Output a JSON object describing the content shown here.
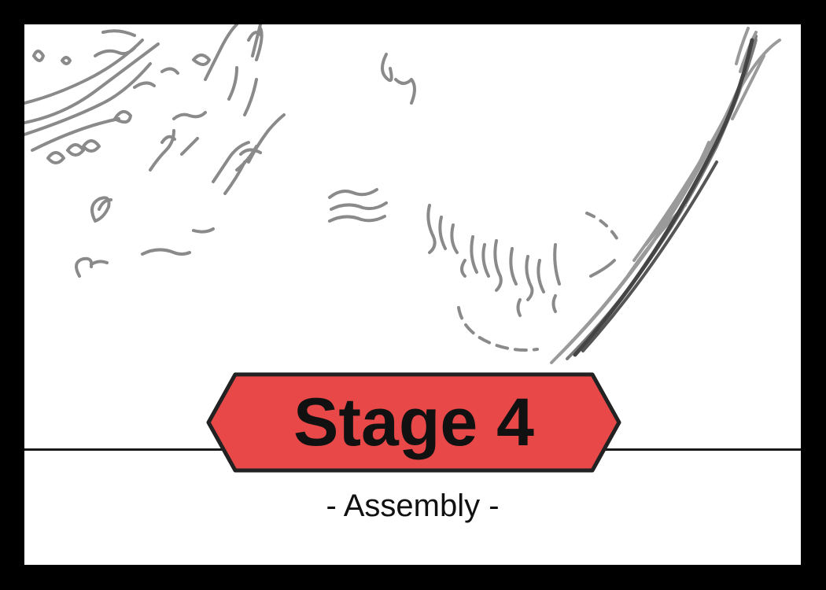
{
  "stage_card": {
    "title": "Stage 4",
    "subtitle": "- Assembly -"
  },
  "colors": {
    "frame": "#000000",
    "background": "#ffffff",
    "banner_fill": "#e84848",
    "banner_border": "#222222",
    "sketch_stroke": "#8a8a8a",
    "sketch_dark": "#444444"
  },
  "icons": {
    "banner_shape": "hexagon-banner",
    "artwork": "pencil-sketch"
  }
}
